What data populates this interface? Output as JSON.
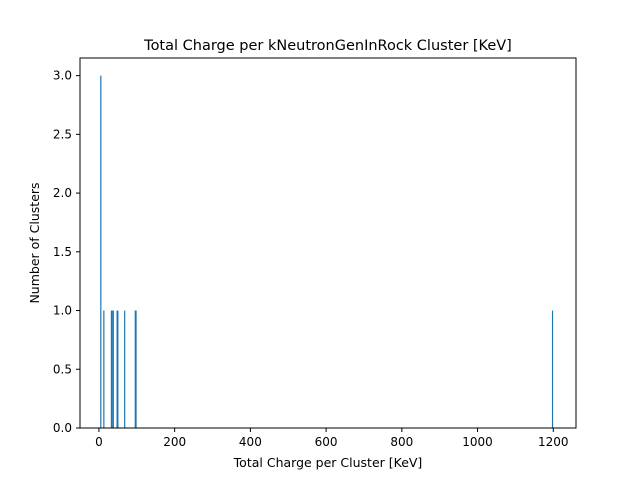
{
  "chart_data": {
    "type": "bar",
    "title": "Total Charge per kNeutronGenInRock Cluster [KeV]",
    "xlabel": "Total Charge per Cluster [KeV]",
    "ylabel": "Number of Clusters",
    "xlim": [
      -50,
      1260
    ],
    "ylim": [
      0,
      3.15
    ],
    "x_ticks": [
      0,
      200,
      400,
      600,
      800,
      1000,
      1200
    ],
    "x_tick_labels": [
      "0",
      "200",
      "400",
      "600",
      "800",
      "1000",
      "1200"
    ],
    "y_ticks": [
      0,
      0.5,
      1.0,
      1.5,
      2.0,
      2.5,
      3.0
    ],
    "y_tick_labels": [
      "0.0",
      "0.5",
      "1.0",
      "1.5",
      "2.0",
      "2.5",
      "3.0"
    ],
    "grid": false,
    "bar_color": "#1f77b4",
    "bins": [
      {
        "x": 5,
        "count": 3
      },
      {
        "x": 13,
        "count": 1
      },
      {
        "x": 33,
        "count": 1
      },
      {
        "x": 35,
        "count": 1
      },
      {
        "x": 38,
        "count": 1
      },
      {
        "x": 48,
        "count": 1
      },
      {
        "x": 50,
        "count": 1
      },
      {
        "x": 68,
        "count": 1
      },
      {
        "x": 96,
        "count": 1
      },
      {
        "x": 98,
        "count": 1
      },
      {
        "x": 1198,
        "count": 1
      }
    ]
  }
}
